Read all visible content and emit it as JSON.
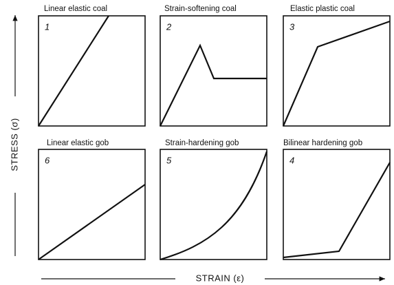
{
  "y_axis_label": "STRESS (σ)",
  "x_axis_label": "STRAIN (ε)",
  "panels": [
    {
      "number": "1",
      "title": "Linear elastic coal"
    },
    {
      "number": "2",
      "title": "Strain-softening coal"
    },
    {
      "number": "3",
      "title": "Elastic plastic coal"
    },
    {
      "number": "6",
      "title": "Linear elastic gob"
    },
    {
      "number": "5",
      "title": "Strain-hardening gob"
    },
    {
      "number": "4",
      "title": "Bilinear hardening gob"
    }
  ]
}
